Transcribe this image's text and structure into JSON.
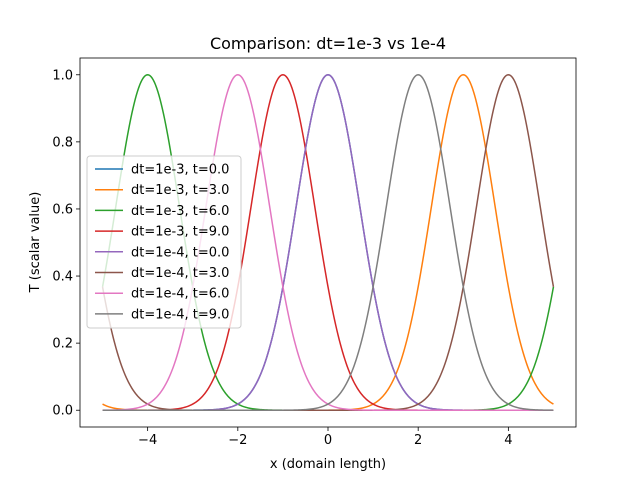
{
  "chart_data": {
    "type": "line",
    "title": "Comparison: dt=1e-3 vs 1e-4",
    "xlabel": "x (domain length)",
    "ylabel": "T (scalar value)",
    "xlim": [
      -5.5,
      5.5
    ],
    "ylim": [
      -0.05,
      1.05
    ],
    "x_domain": [
      -5,
      5
    ],
    "x_ticks": [
      -4,
      -2,
      0,
      2,
      4
    ],
    "y_ticks": [
      0.0,
      0.2,
      0.4,
      0.6,
      0.8,
      1.0
    ],
    "x_tick_labels": [
      "−4",
      "−2",
      "0",
      "2",
      "4"
    ],
    "y_tick_labels": [
      "0.0",
      "0.2",
      "0.4",
      "0.6",
      "0.8",
      "1.0"
    ],
    "curve_shape": "periodic gaussian pulse, amplitude 1.0, width ~0.707, period 10",
    "grid": false,
    "legend_position": "center-left",
    "series": [
      {
        "name": "dt=1e-3, t=0.0",
        "peak_x": 0,
        "color": "#1f77b4"
      },
      {
        "name": "dt=1e-3, t=3.0",
        "peak_x": 3,
        "color": "#ff7f0e"
      },
      {
        "name": "dt=1e-3, t=6.0",
        "peak_x": -4,
        "color": "#2ca02c"
      },
      {
        "name": "dt=1e-3, t=9.0",
        "peak_x": -1,
        "color": "#d62728"
      },
      {
        "name": "dt=1e-4, t=0.0",
        "peak_x": 0,
        "color": "#9467bd"
      },
      {
        "name": "dt=1e-4, t=3.0",
        "peak_x": 4,
        "color": "#8c564b"
      },
      {
        "name": "dt=1e-4, t=6.0",
        "peak_x": -2,
        "color": "#e377c2"
      },
      {
        "name": "dt=1e-4, t=9.0",
        "peak_x": 2,
        "color": "#7f7f7f"
      }
    ]
  }
}
